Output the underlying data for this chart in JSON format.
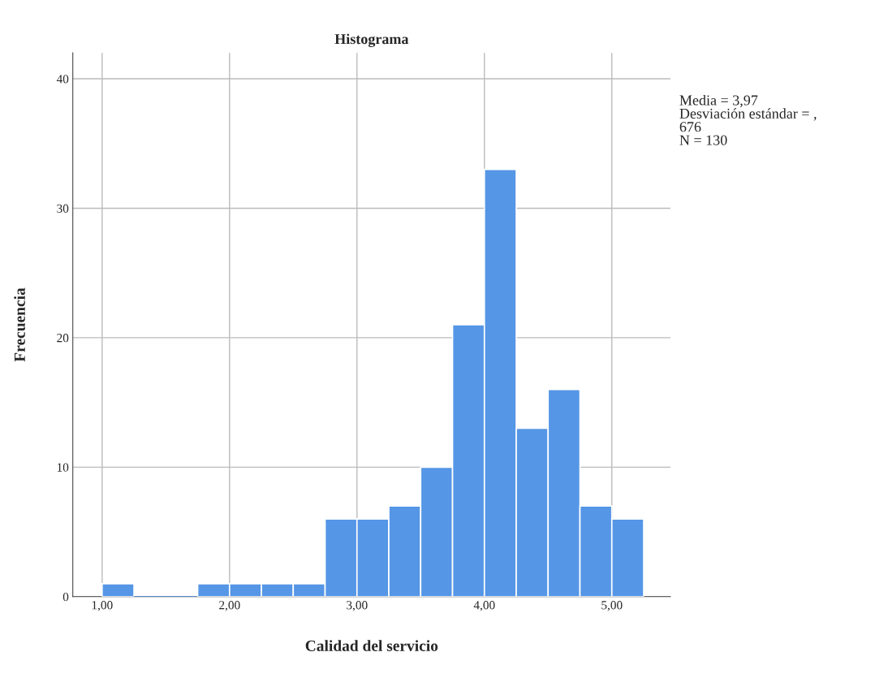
{
  "chart_data": {
    "type": "histogram",
    "title": "Histograma",
    "xlabel": "Calidad del servicio",
    "ylabel": "Frecuencia",
    "bins": [
      1.0,
      1.25,
      1.5,
      1.75,
      2.0,
      2.25,
      2.5,
      2.75,
      3.0,
      3.25,
      3.5,
      3.75,
      4.0,
      4.25,
      4.5,
      4.75,
      5.0,
      5.25
    ],
    "values": [
      1,
      0,
      0,
      1,
      1,
      1,
      1,
      6,
      6,
      7,
      10,
      21,
      33,
      13,
      16,
      7,
      6
    ],
    "color": "#5596e6",
    "xlim": [
      0.77,
      5.46
    ],
    "ylim": [
      0,
      42
    ],
    "xticks": [
      {
        "value": 1,
        "label": "1,00"
      },
      {
        "value": 2,
        "label": "2,00"
      },
      {
        "value": 3,
        "label": "3,00"
      },
      {
        "value": 4,
        "label": "4,00"
      },
      {
        "value": 5,
        "label": "5,00"
      }
    ],
    "yticks": [
      0,
      10,
      20,
      30,
      40
    ],
    "grid": true,
    "annotations": [
      "Media = 3,97\nDesviación estándar = ,\n676\nN = 130"
    ]
  }
}
